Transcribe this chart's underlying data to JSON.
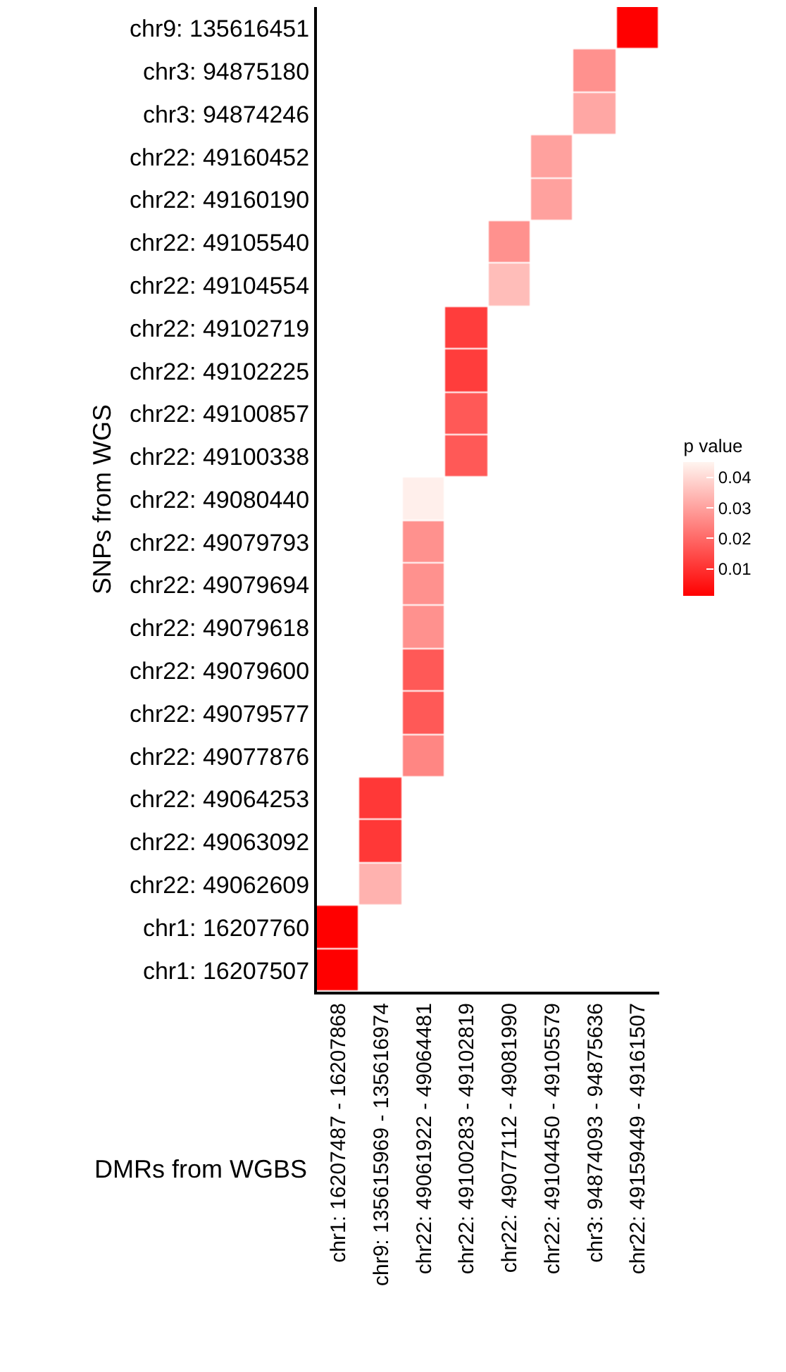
{
  "chart_data": {
    "type": "heatmap",
    "xlabel": "DMRs from WGBS",
    "ylabel": "SNPs from WGS",
    "clabel": "p value",
    "categories": [
      "chr1: 16207487 - 16207868",
      "chr9: 135615969 - 135616974",
      "chr22: 49061922 - 49064481",
      "chr22: 49100283 - 49102819",
      "chr22: 49077112 - 49081990",
      "chr22: 49104450 - 49105579",
      "chr3: 94874093 - 94875636",
      "chr22: 49159449 - 49161507"
    ],
    "y_categories": [
      "chr9: 135616451",
      "chr3: 94875180",
      "chr3: 94874246",
      "chr22: 49160452",
      "chr22: 49160190",
      "chr22: 49105540",
      "chr22: 49104554",
      "chr22: 49102719",
      "chr22: 49102225",
      "chr22: 49100857",
      "chr22: 49100338",
      "chr22: 49080440",
      "chr22: 49079793",
      "chr22: 49079694",
      "chr22: 49079618",
      "chr22: 49079600",
      "chr22: 49079577",
      "chr22: 49077876",
      "chr22: 49064253",
      "chr22: 49063092",
      "chr22: 49062609",
      "chr1: 16207760",
      "chr1: 16207507"
    ],
    "cells": [
      [
        null,
        null,
        null,
        null,
        null,
        null,
        null,
        0.001
      ],
      [
        null,
        null,
        null,
        null,
        null,
        null,
        0.027,
        null
      ],
      [
        null,
        null,
        null,
        null,
        null,
        null,
        0.031,
        null
      ],
      [
        null,
        null,
        null,
        null,
        null,
        0.03,
        null,
        null
      ],
      [
        null,
        null,
        null,
        null,
        null,
        0.03,
        null,
        null
      ],
      [
        null,
        null,
        null,
        null,
        0.027,
        null,
        null,
        null
      ],
      [
        null,
        null,
        null,
        null,
        0.035,
        null,
        null,
        null
      ],
      [
        null,
        null,
        null,
        0.012,
        null,
        null,
        null,
        null
      ],
      [
        null,
        null,
        null,
        0.012,
        null,
        null,
        null,
        null
      ],
      [
        null,
        null,
        null,
        0.017,
        null,
        null,
        null,
        null
      ],
      [
        null,
        null,
        null,
        0.017,
        null,
        null,
        null,
        null
      ],
      [
        null,
        null,
        0.044,
        null,
        null,
        null,
        null,
        null
      ],
      [
        null,
        null,
        0.027,
        null,
        null,
        null,
        null,
        null
      ],
      [
        null,
        null,
        0.027,
        null,
        null,
        null,
        null,
        null
      ],
      [
        null,
        null,
        0.027,
        null,
        null,
        null,
        null,
        null
      ],
      [
        null,
        null,
        0.017,
        null,
        null,
        null,
        null,
        null
      ],
      [
        null,
        null,
        0.017,
        null,
        null,
        null,
        null,
        null
      ],
      [
        null,
        null,
        0.025,
        null,
        null,
        null,
        null,
        null
      ],
      [
        null,
        0.011,
        null,
        null,
        null,
        null,
        null,
        null
      ],
      [
        null,
        0.011,
        null,
        null,
        null,
        null,
        null,
        null
      ],
      [
        null,
        0.033,
        null,
        null,
        null,
        null,
        null,
        null
      ],
      [
        0.001,
        null,
        null,
        null,
        null,
        null,
        null,
        null
      ],
      [
        0.001,
        null,
        null,
        null,
        null,
        null,
        null,
        null
      ]
    ],
    "clim": [
      0.001,
      0.045
    ],
    "cticks": [
      0.01,
      0.02,
      0.03,
      0.04
    ],
    "colors": [
      "#ff0000",
      "#fff5f0"
    ]
  }
}
